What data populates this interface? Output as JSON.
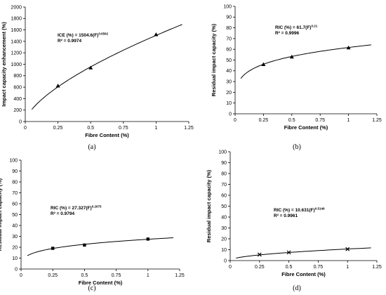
{
  "chart_data": [
    {
      "type": "scatter",
      "panel_label": "(a)",
      "xlabel": "Fibre Content (%)",
      "ylabel": "Impact capacity enhancement (%)",
      "xlim": [
        0,
        1.25
      ],
      "ylim": [
        0,
        2000
      ],
      "xticks": [
        "0",
        "0.25",
        "0.5",
        "0.75",
        "1",
        "1.25"
      ],
      "yticks": [
        "0",
        "200",
        "400",
        "600",
        "800",
        "1000",
        "1200",
        "1400",
        "1600",
        "1800",
        "2000"
      ],
      "marker": "triangle",
      "series": [
        {
          "x": [
            0.25,
            0.5,
            1.0
          ],
          "y": [
            625,
            940,
            1520
          ]
        }
      ],
      "fit": {
        "coef": 1504.6,
        "exp": 0.6562,
        "x_range": [
          0.05,
          1.2
        ]
      },
      "equation": {
        "prefix": "ICE (%) = 1504.6(F)",
        "sup": "0.6562",
        "r2": "R² = 0.9974"
      },
      "grid": false
    },
    {
      "type": "scatter",
      "panel_label": "(b)",
      "xlabel": "Fibre Content (%)",
      "ylabel": "Residual impact capacity (%)",
      "xlim": [
        0,
        1.25
      ],
      "ylim": [
        0,
        100
      ],
      "xticks": [
        "0",
        "0.25",
        "0.5",
        "0.75",
        "1",
        "1.25"
      ],
      "yticks": [
        "0",
        "10",
        "20",
        "30",
        "40",
        "50",
        "60",
        "70",
        "80",
        "90",
        "100"
      ],
      "marker": "triangle",
      "series": [
        {
          "x": [
            0.25,
            0.5,
            1.0
          ],
          "y": [
            46,
            53,
            61.5
          ]
        }
      ],
      "fit": {
        "coef": 61.7,
        "exp": 0.21,
        "x_range": [
          0.05,
          1.2
        ]
      },
      "equation": {
        "prefix": "RIC (%) = 61.7(F)",
        "sup": "0.21",
        "r2": "R² = 0.9996"
      },
      "grid": false
    },
    {
      "type": "scatter",
      "panel_label": "(c)",
      "xlabel": "Fibre Content (%)",
      "ylabel": "Residual impact capacity (%)",
      "xlim": [
        0,
        1.25
      ],
      "ylim": [
        0,
        100
      ],
      "xticks": [
        "0",
        "0.25",
        "0.5",
        "0.75",
        "1",
        "1.25"
      ],
      "yticks": [
        "0",
        "10",
        "20",
        "30",
        "40",
        "50",
        "60",
        "70",
        "80",
        "90",
        "100"
      ],
      "marker": "square",
      "series": [
        {
          "x": [
            0.25,
            0.5,
            1.0
          ],
          "y": [
            19,
            22,
            27.5
          ]
        }
      ],
      "fit": {
        "coef": 27.327,
        "exp": 0.2675,
        "x_range": [
          0.05,
          1.2
        ]
      },
      "equation": {
        "prefix": "RIC (%) = 27.327(F)",
        "sup": "0.2675",
        "r2": "R² = 0.9794"
      },
      "grid": false
    },
    {
      "type": "scatter",
      "panel_label": "(d)",
      "xlabel": "Fibre Content (%)",
      "ylabel": "Residual impact capacity (%)",
      "xlim": [
        0,
        1.25
      ],
      "ylim": [
        0,
        100
      ],
      "xticks": [
        "0",
        "0.25",
        "0.5",
        "0.75",
        "1",
        "1.25"
      ],
      "yticks": [
        "0",
        "10",
        "20",
        "30",
        "40",
        "50",
        "60",
        "70",
        "80",
        "90",
        "100"
      ],
      "marker": "cross",
      "series": [
        {
          "x": [
            0.25,
            0.5,
            1.0
          ],
          "y": [
            5.5,
            7.5,
            10.5
          ]
        }
      ],
      "fit": {
        "coef": 10.631,
        "exp": 0.5149,
        "x_range": [
          0.05,
          1.2
        ]
      },
      "equation": {
        "prefix": "RIC (%) = 10.631(F)",
        "sup": "0.5149",
        "r2": "R² = 0.9961"
      },
      "grid": false
    }
  ]
}
